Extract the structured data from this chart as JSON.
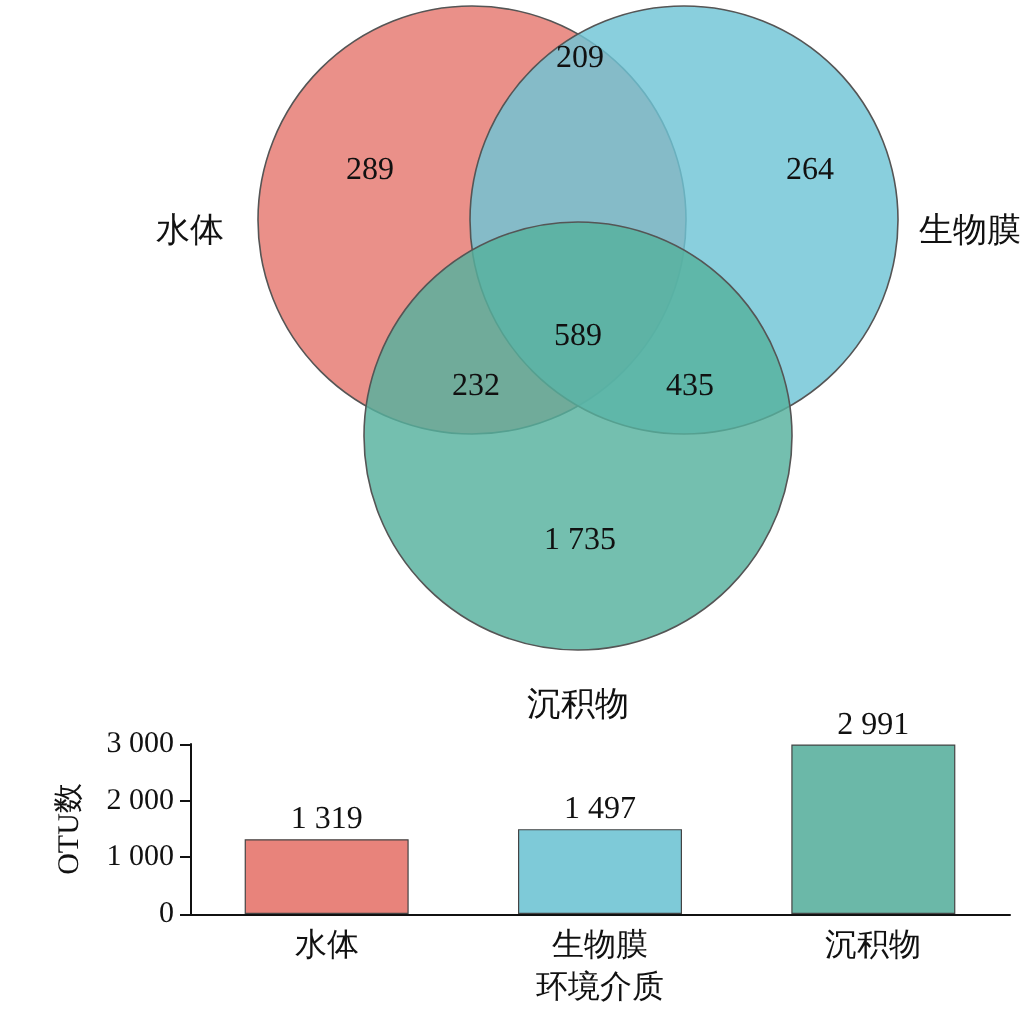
{
  "chart_data": [
    {
      "type": "other",
      "categories": [
        "水体",
        "生物膜",
        "沉积物"
      ],
      "colors": [
        "#e5776f",
        "#6fc5d6",
        "#55b19d"
      ],
      "annotations": [
        "289",
        "264",
        "1 735",
        "209",
        "232",
        "435",
        "589"
      ]
    },
    {
      "type": "bar",
      "categories": [
        "水体",
        "生物膜",
        "沉积物"
      ],
      "values": [
        1319,
        1497,
        2991
      ],
      "colors": [
        "#e8837b",
        "#7ecad8",
        "#6bb8a8"
      ],
      "value_labels": [
        "1 319",
        "1 497",
        "2 991"
      ],
      "xlabel": "环境介质",
      "ylabel": "OTU数",
      "ylim": [
        0,
        3000
      ],
      "yticks": [
        {
          "value": 0,
          "label": "0"
        },
        {
          "value": 1000,
          "label": "1 000"
        },
        {
          "value": 2000,
          "label": "2 000"
        },
        {
          "value": 3000,
          "label": "3 000"
        }
      ],
      "grid": false
    }
  ]
}
